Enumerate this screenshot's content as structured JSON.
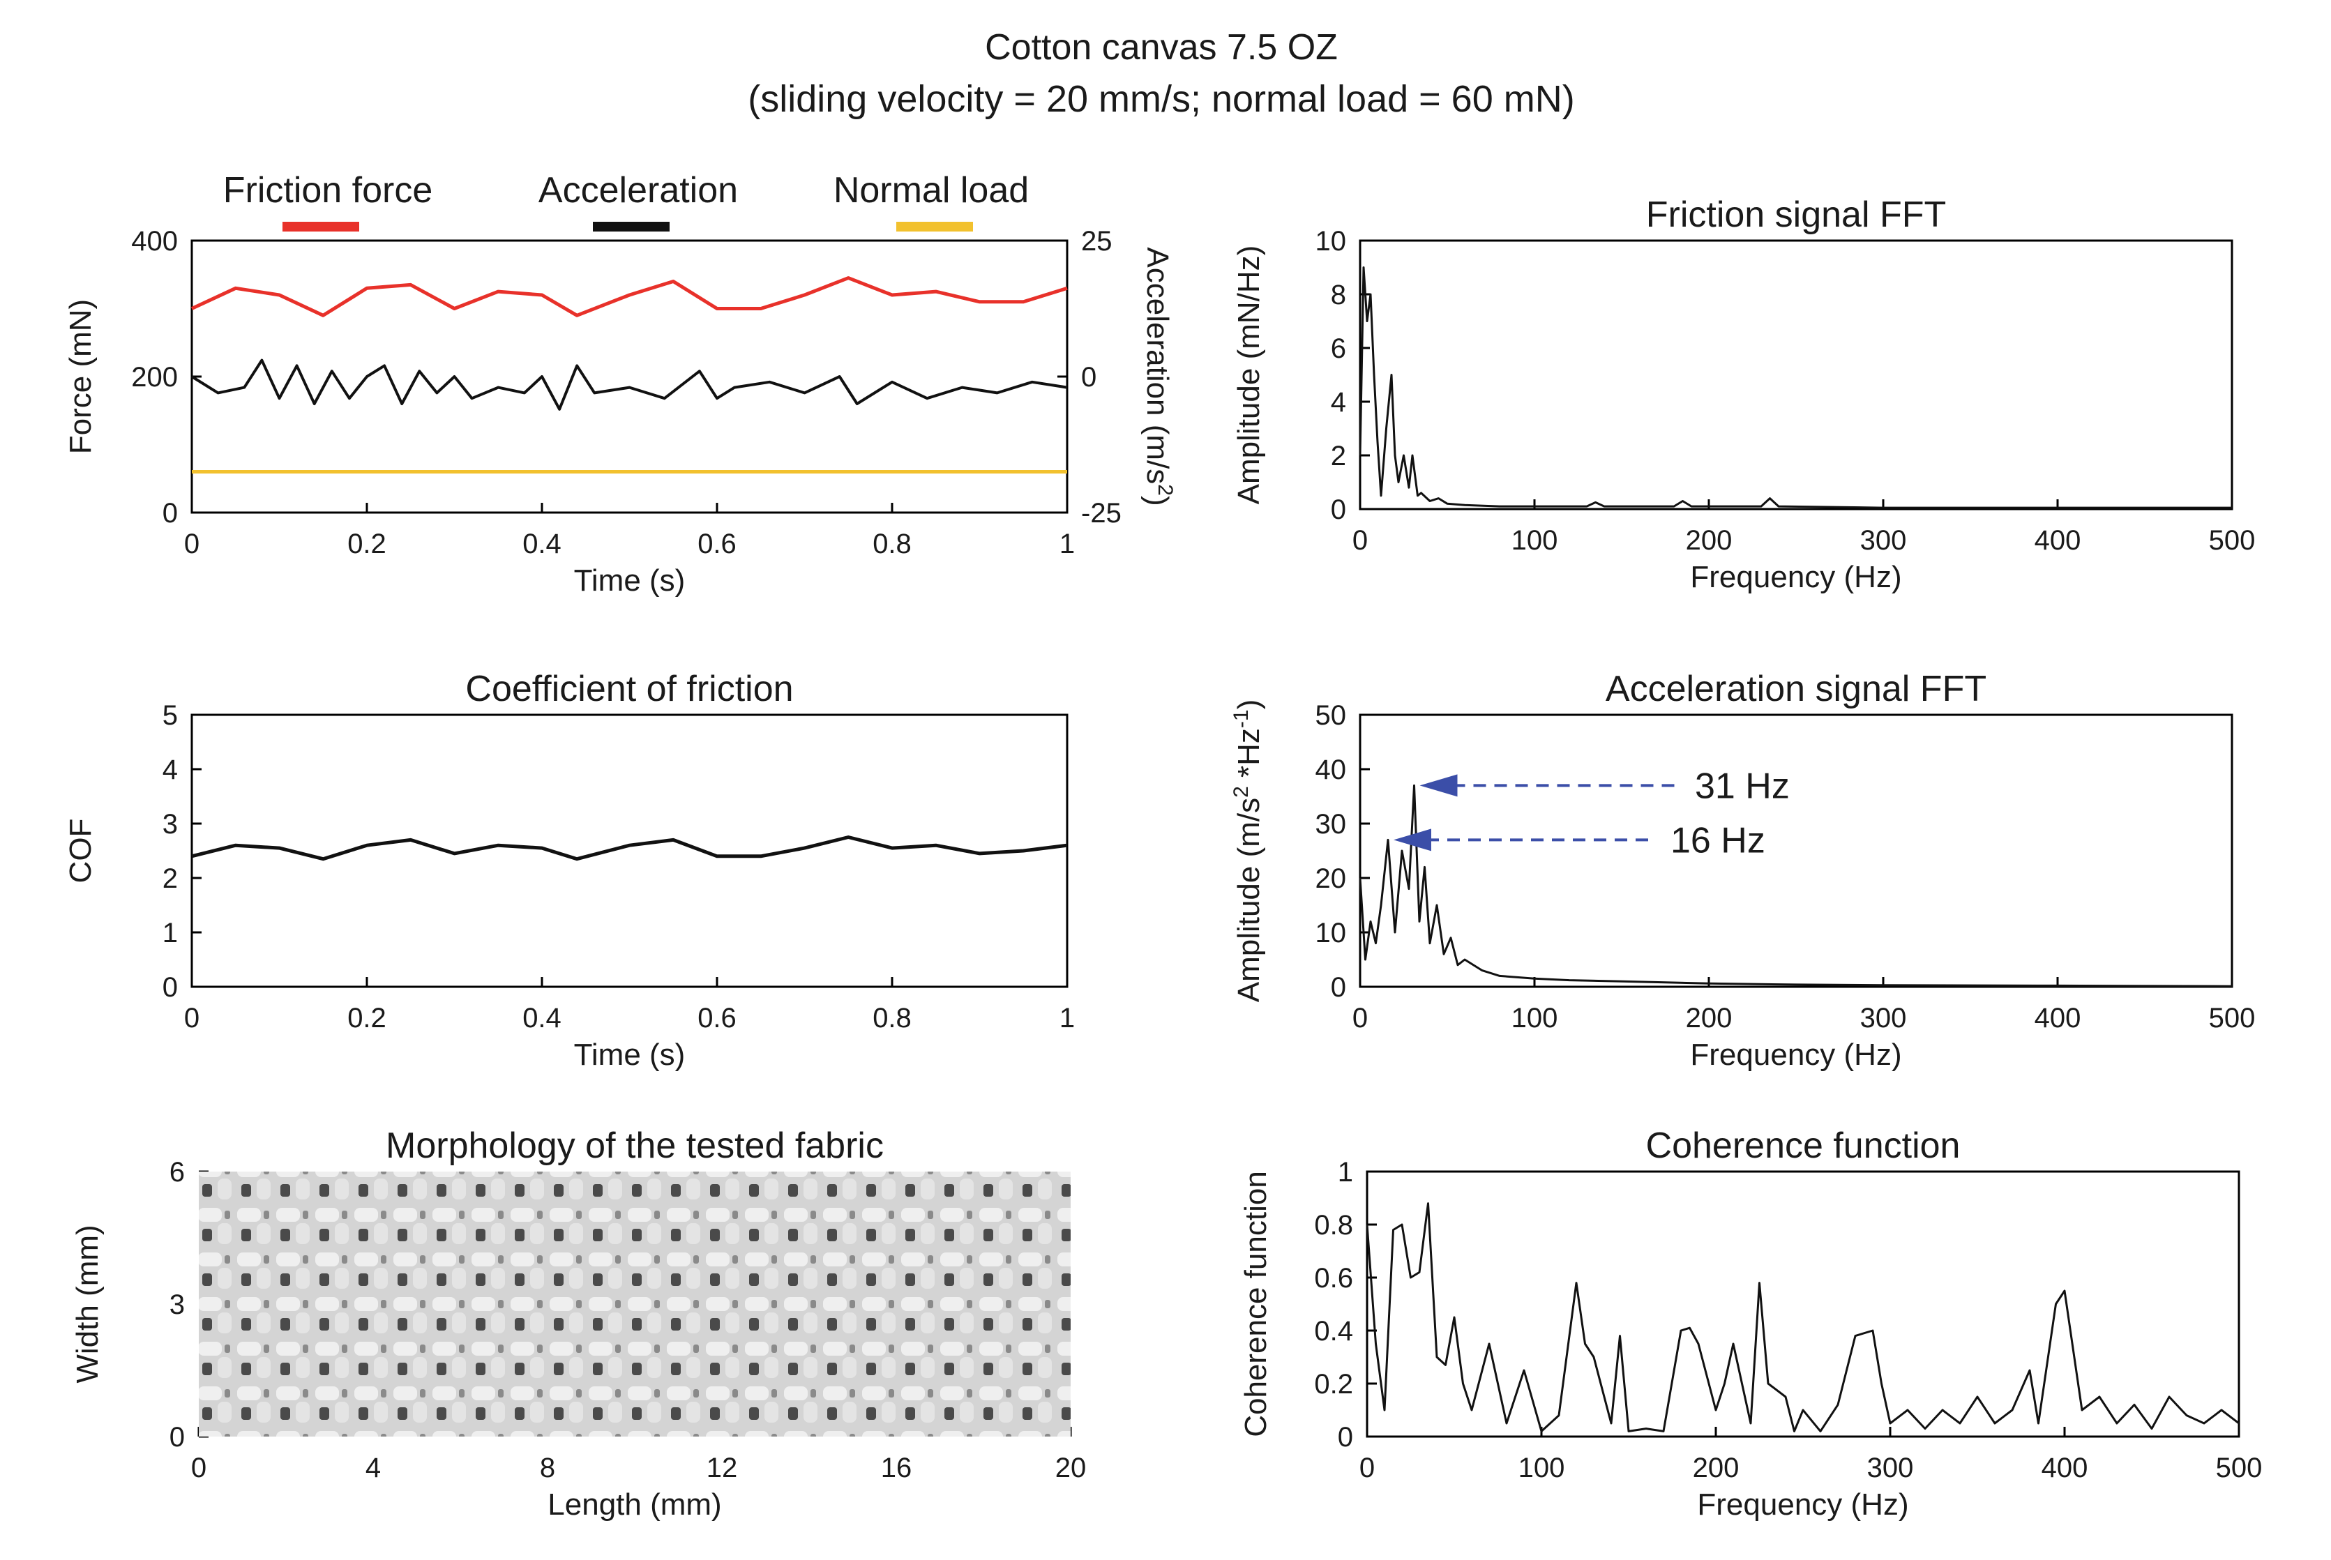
{
  "figure": {
    "title": "Cotton canvas 7.5 OZ",
    "subtitle": "(sliding velocity = 20 mm/s; normal load = 60 mN)"
  },
  "colors": {
    "friction": "#e8312a",
    "acceleration": "#111111",
    "normal": "#f2c12e",
    "fft": "#111111",
    "arrow": "#3b4ea8",
    "fabric_base": "#d4d4d4",
    "fabric_hole": "#4a4a4a"
  },
  "chart_data": [
    {
      "id": "time-signals",
      "type": "line",
      "title": "",
      "xlabel": "Time (s)",
      "ylabel": "Force (mN)",
      "y2label": "Acceleration (m/s",
      "y2label_sup": "2",
      "y2label_close": ")",
      "xlim": [
        0,
        1
      ],
      "ylim": [
        0,
        400
      ],
      "y2lim": [
        -25,
        25
      ],
      "xticks": [
        "0",
        "0.2",
        "0.4",
        "0.6",
        "0.8",
        "1"
      ],
      "yticks": [
        "0",
        "200",
        "400"
      ],
      "y2ticks": [
        "-25",
        "0",
        "25"
      ],
      "legend": [
        "Friction force",
        "Acceleration",
        "Normal load"
      ],
      "series": [
        {
          "name": "Friction force",
          "axis": "left",
          "x": [
            0,
            0.05,
            0.1,
            0.15,
            0.2,
            0.25,
            0.3,
            0.35,
            0.4,
            0.44,
            0.5,
            0.55,
            0.6,
            0.65,
            0.7,
            0.75,
            0.8,
            0.85,
            0.9,
            0.95,
            1.0
          ],
          "values": [
            300,
            330,
            320,
            290,
            330,
            335,
            300,
            325,
            320,
            290,
            320,
            340,
            300,
            300,
            320,
            345,
            320,
            325,
            310,
            310,
            330
          ]
        },
        {
          "name": "Acceleration",
          "axis": "right",
          "x": [
            0,
            0.03,
            0.06,
            0.08,
            0.1,
            0.12,
            0.14,
            0.16,
            0.18,
            0.2,
            0.22,
            0.24,
            0.26,
            0.28,
            0.3,
            0.32,
            0.35,
            0.38,
            0.4,
            0.42,
            0.44,
            0.46,
            0.5,
            0.54,
            0.58,
            0.6,
            0.62,
            0.66,
            0.7,
            0.74,
            0.76,
            0.8,
            0.84,
            0.88,
            0.92,
            0.96,
            1.0
          ],
          "values": [
            0,
            -3,
            -2,
            3,
            -4,
            2,
            -5,
            1,
            -4,
            0,
            2,
            -5,
            1,
            -3,
            0,
            -4,
            -2,
            -3,
            0,
            -6,
            2,
            -3,
            -2,
            -4,
            1,
            -4,
            -2,
            -1,
            -3,
            0,
            -5,
            -1,
            -4,
            -2,
            -3,
            -1,
            -2
          ]
        },
        {
          "name": "Normal load",
          "axis": "left",
          "x": [
            0,
            1
          ],
          "values": [
            60,
            60
          ]
        }
      ]
    },
    {
      "id": "friction-fft",
      "type": "line",
      "title": "Friction signal FFT",
      "xlabel": "Frequency (Hz)",
      "ylabel": "Amplitude (mN/Hz)",
      "xlim": [
        0,
        500
      ],
      "ylim": [
        0,
        10
      ],
      "xticks": [
        "0",
        "100",
        "200",
        "300",
        "400",
        "500"
      ],
      "yticks": [
        "0",
        "2",
        "4",
        "6",
        "8",
        "10"
      ],
      "series": [
        {
          "name": "Friction FFT",
          "x": [
            0,
            2,
            4,
            6,
            8,
            10,
            12,
            15,
            18,
            20,
            22,
            25,
            28,
            30,
            33,
            35,
            40,
            45,
            50,
            60,
            80,
            100,
            130,
            135,
            140,
            180,
            185,
            190,
            230,
            235,
            240,
            300,
            400,
            480,
            500
          ],
          "values": [
            2,
            9,
            7,
            8,
            5,
            2.5,
            0.5,
            3,
            5,
            2,
            1,
            2,
            0.8,
            2,
            0.5,
            0.6,
            0.3,
            0.4,
            0.2,
            0.15,
            0.1,
            0.1,
            0.1,
            0.25,
            0.1,
            0.1,
            0.3,
            0.1,
            0.1,
            0.4,
            0.1,
            0.05,
            0.05,
            0.05,
            0.05
          ]
        }
      ]
    },
    {
      "id": "cof",
      "type": "line",
      "title": "Coefficient of friction",
      "xlabel": "Time (s)",
      "ylabel": "COF",
      "xlim": [
        0,
        1
      ],
      "ylim": [
        0,
        5
      ],
      "xticks": [
        "0",
        "0.2",
        "0.4",
        "0.6",
        "0.8",
        "1"
      ],
      "yticks": [
        "0",
        "1",
        "2",
        "3",
        "4",
        "5"
      ],
      "series": [
        {
          "name": "COF",
          "x": [
            0,
            0.05,
            0.1,
            0.15,
            0.2,
            0.25,
            0.3,
            0.35,
            0.4,
            0.44,
            0.5,
            0.55,
            0.6,
            0.65,
            0.7,
            0.75,
            0.8,
            0.85,
            0.9,
            0.95,
            1.0
          ],
          "values": [
            2.4,
            2.6,
            2.55,
            2.35,
            2.6,
            2.7,
            2.45,
            2.6,
            2.55,
            2.35,
            2.6,
            2.7,
            2.4,
            2.4,
            2.55,
            2.75,
            2.55,
            2.6,
            2.45,
            2.5,
            2.6
          ]
        }
      ]
    },
    {
      "id": "accel-fft",
      "type": "line",
      "title": "Acceleration signal FFT",
      "xlabel": "Frequency (Hz)",
      "ylabel": "Amplitude (m/s",
      "ylabel_sup1": "2",
      "ylabel_mid": " *Hz",
      "ylabel_sup2": "-1",
      "ylabel_close": ")",
      "xlim": [
        0,
        500
      ],
      "ylim": [
        0,
        50
      ],
      "xticks": [
        "0",
        "100",
        "200",
        "300",
        "400",
        "500"
      ],
      "yticks": [
        "0",
        "10",
        "20",
        "30",
        "40",
        "50"
      ],
      "annotations": [
        {
          "label": "31 Hz",
          "x": 31,
          "y": 37
        },
        {
          "label": "16 Hz",
          "x": 16,
          "y": 27
        }
      ],
      "series": [
        {
          "name": "Acceleration FFT",
          "x": [
            0,
            3,
            6,
            9,
            12,
            16,
            20,
            24,
            28,
            31,
            34,
            37,
            40,
            44,
            48,
            52,
            56,
            60,
            70,
            80,
            100,
            120,
            150,
            200,
            250,
            300,
            400,
            500
          ],
          "values": [
            20,
            5,
            12,
            8,
            15,
            27,
            10,
            25,
            18,
            37,
            12,
            22,
            8,
            15,
            6,
            9,
            4,
            5,
            3,
            2,
            1.5,
            1.2,
            1,
            0.6,
            0.4,
            0.3,
            0.2,
            0.1
          ]
        }
      ]
    },
    {
      "id": "morphology",
      "type": "image",
      "title": "Morphology of the tested fabric",
      "xlabel": "Length (mm)",
      "ylabel": "Width (mm)",
      "xlim": [
        0,
        20
      ],
      "ylim": [
        0,
        6
      ],
      "xticks": [
        "0",
        "4",
        "8",
        "12",
        "16",
        "20"
      ],
      "yticks": [
        "0",
        "3",
        "6"
      ]
    },
    {
      "id": "coherence",
      "type": "line",
      "title": "Coherence function",
      "xlabel": "Frequency (Hz)",
      "ylabel": "Coherence function",
      "xlim": [
        0,
        500
      ],
      "ylim": [
        0,
        1
      ],
      "xticks": [
        "0",
        "100",
        "200",
        "300",
        "400",
        "500"
      ],
      "yticks": [
        "0",
        "0.2",
        "0.4",
        "0.6",
        "0.8",
        "1"
      ],
      "series": [
        {
          "name": "Coherence",
          "x": [
            0,
            5,
            10,
            15,
            20,
            25,
            30,
            35,
            40,
            45,
            50,
            55,
            60,
            70,
            80,
            90,
            100,
            110,
            120,
            125,
            130,
            140,
            145,
            150,
            160,
            170,
            180,
            185,
            190,
            200,
            205,
            210,
            220,
            225,
            230,
            240,
            245,
            250,
            260,
            270,
            280,
            290,
            295,
            300,
            310,
            320,
            330,
            340,
            350,
            360,
            370,
            380,
            385,
            395,
            400,
            410,
            420,
            430,
            440,
            450,
            460,
            470,
            480,
            490,
            500
          ],
          "values": [
            0.8,
            0.35,
            0.1,
            0.78,
            0.8,
            0.6,
            0.62,
            0.88,
            0.3,
            0.27,
            0.45,
            0.2,
            0.1,
            0.35,
            0.05,
            0.25,
            0.02,
            0.08,
            0.58,
            0.35,
            0.3,
            0.05,
            0.38,
            0.02,
            0.03,
            0.02,
            0.4,
            0.41,
            0.35,
            0.1,
            0.2,
            0.35,
            0.05,
            0.58,
            0.2,
            0.15,
            0.02,
            0.1,
            0.02,
            0.12,
            0.38,
            0.4,
            0.2,
            0.05,
            0.1,
            0.03,
            0.1,
            0.05,
            0.15,
            0.05,
            0.1,
            0.25,
            0.05,
            0.5,
            0.55,
            0.1,
            0.15,
            0.05,
            0.12,
            0.03,
            0.15,
            0.08,
            0.05,
            0.1,
            0.05
          ]
        }
      ]
    }
  ]
}
